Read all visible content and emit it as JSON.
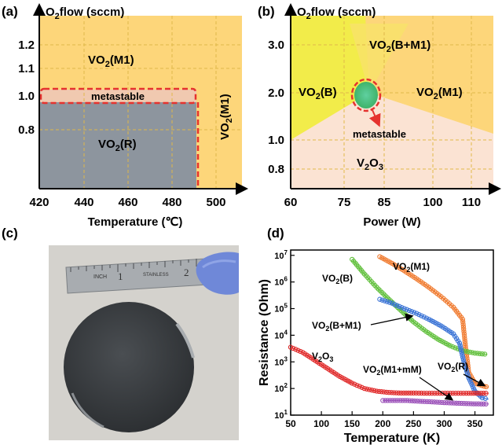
{
  "figure": {
    "panels": [
      {
        "letter": "(a)",
        "y_title_main": "O",
        "y_title_sub": "2",
        "y_title_rest": "flow (sccm)",
        "xlabel": "Temperature (℃)",
        "x_ticks": [
          "420",
          "440",
          "460",
          "480",
          "500"
        ],
        "y_ticks": [
          "1.2",
          "1.1",
          "1.0",
          "0.8"
        ],
        "regions": {
          "m1_top": {
            "main": "VO",
            "sub": "2",
            "rest": "(M1)"
          },
          "metastable": "metastable",
          "r": {
            "main": "VO",
            "sub": "2",
            "rest": "(R)"
          },
          "m1_side": {
            "main": "VO",
            "sub": "2",
            "rest": "(M1)"
          }
        },
        "colors": {
          "m1": "#fdd67a",
          "r": "#8d959e",
          "metastable_border": "#e5322e"
        }
      },
      {
        "letter": "(b)",
        "y_title_main": "O",
        "y_title_sub": "2",
        "y_title_rest": "flow (sccm)",
        "xlabel": "Power (W)",
        "x_ticks": [
          "60",
          "75",
          "85",
          "100",
          "110"
        ],
        "y_ticks": [
          "3.0",
          "2.0",
          "1.0",
          "0.8"
        ],
        "regions": {
          "bm1": {
            "main": "VO",
            "sub": "2",
            "rest": "(B+M1)"
          },
          "b": {
            "main": "VO",
            "sub": "2",
            "rest": "(B)"
          },
          "m1": {
            "main": "VO",
            "sub": "2",
            "rest": "(M1)"
          },
          "metastable": "metastable",
          "v2o3": {
            "main": "V",
            "sub1": "2",
            "mid": "O",
            "sub2": "3"
          }
        },
        "colors": {
          "b": "#f2ec4a",
          "m1": "#fdd67a",
          "v2o3": "#fbe3d3",
          "metastable": "#59c27a"
        }
      },
      {
        "letter": "(c)",
        "ruler": {
          "inch": "INCH",
          "one": "1",
          "stainless": "STAINLESS",
          "two": "2"
        }
      },
      {
        "letter": "(d)",
        "chart_data": {
          "type": "scatter",
          "xlabel": "Temperature (K)",
          "ylabel": "Resistance (Ohm)",
          "x_ticks": [
            "50",
            "100",
            "150",
            "200",
            "250",
            "300",
            "350"
          ],
          "y_ticks": [
            {
              "base": "10",
              "exp": "1"
            },
            {
              "base": "10",
              "exp": "2"
            },
            {
              "base": "10",
              "exp": "3"
            },
            {
              "base": "10",
              "exp": "4"
            },
            {
              "base": "10",
              "exp": "5"
            },
            {
              "base": "10",
              "exp": "6"
            },
            {
              "base": "10",
              "exp": "7"
            }
          ],
          "xlim": [
            50,
            380
          ],
          "ylim_log10": [
            1,
            7.2
          ],
          "series": [
            {
              "name_main": "VO",
              "name_sub": "2",
              "name_rest": "(M1)",
              "color": "#f07a2e",
              "x": [
                195,
                215,
                235,
                255,
                275,
                295,
                315,
                330,
                335,
                340,
                350,
                365,
                372
              ],
              "log_y": [
                6.95,
                6.7,
                6.42,
                6.12,
                5.8,
                5.45,
                5.05,
                4.6,
                3.5,
                2.6,
                2.2,
                2.08,
                2.05
              ]
            },
            {
              "name_main": "VO",
              "name_sub": "2",
              "name_rest": "(B)",
              "color": "#5fbf3a",
              "x": [
                150,
                170,
                190,
                210,
                230,
                250,
                270,
                290,
                310,
                330,
                350,
                370
              ],
              "log_y": [
                6.85,
                6.3,
                5.8,
                5.35,
                4.92,
                4.5,
                4.15,
                3.85,
                3.6,
                3.42,
                3.33,
                3.28
              ]
            },
            {
              "name_main": "VO",
              "name_sub": "2",
              "name_rest": "(B+M1)",
              "color": "#3a73d6",
              "x": [
                195,
                215,
                235,
                255,
                275,
                295,
                315,
                325,
                332,
                340,
                350,
                362,
                372
              ],
              "log_y": [
                5.35,
                5.2,
                5.0,
                4.82,
                4.6,
                4.35,
                4.05,
                3.7,
                3.0,
                2.4,
                1.9,
                1.65,
                1.6
              ]
            },
            {
              "name_main": "V",
              "name_sub": "2",
              "name_mid": "O",
              "name_sub2": "3",
              "color": "#e02828",
              "x": [
                50,
                70,
                90,
                110,
                130,
                150,
                170,
                190,
                210,
                230,
                250,
                280,
                310,
                340,
                372
              ],
              "log_y": [
                3.55,
                3.35,
                3.05,
                2.75,
                2.45,
                2.2,
                2.0,
                1.9,
                1.85,
                1.83,
                1.83,
                1.82,
                1.82,
                1.82,
                1.82
              ]
            },
            {
              "name_main": "VO",
              "name_sub": "2",
              "name_rest": "(M1+mM)",
              "color": "#9a4fb8",
              "x": [
                200,
                220,
                240,
                260,
                280,
                300,
                320,
                340,
                360,
                372
              ],
              "log_y": [
                1.55,
                1.55,
                1.55,
                1.52,
                1.5,
                1.47,
                1.45,
                1.43,
                1.42,
                1.42
              ]
            }
          ],
          "annotations": {
            "r_label": {
              "main": "VO",
              "sub": "2",
              "rest": "(R)"
            }
          }
        }
      }
    ]
  }
}
